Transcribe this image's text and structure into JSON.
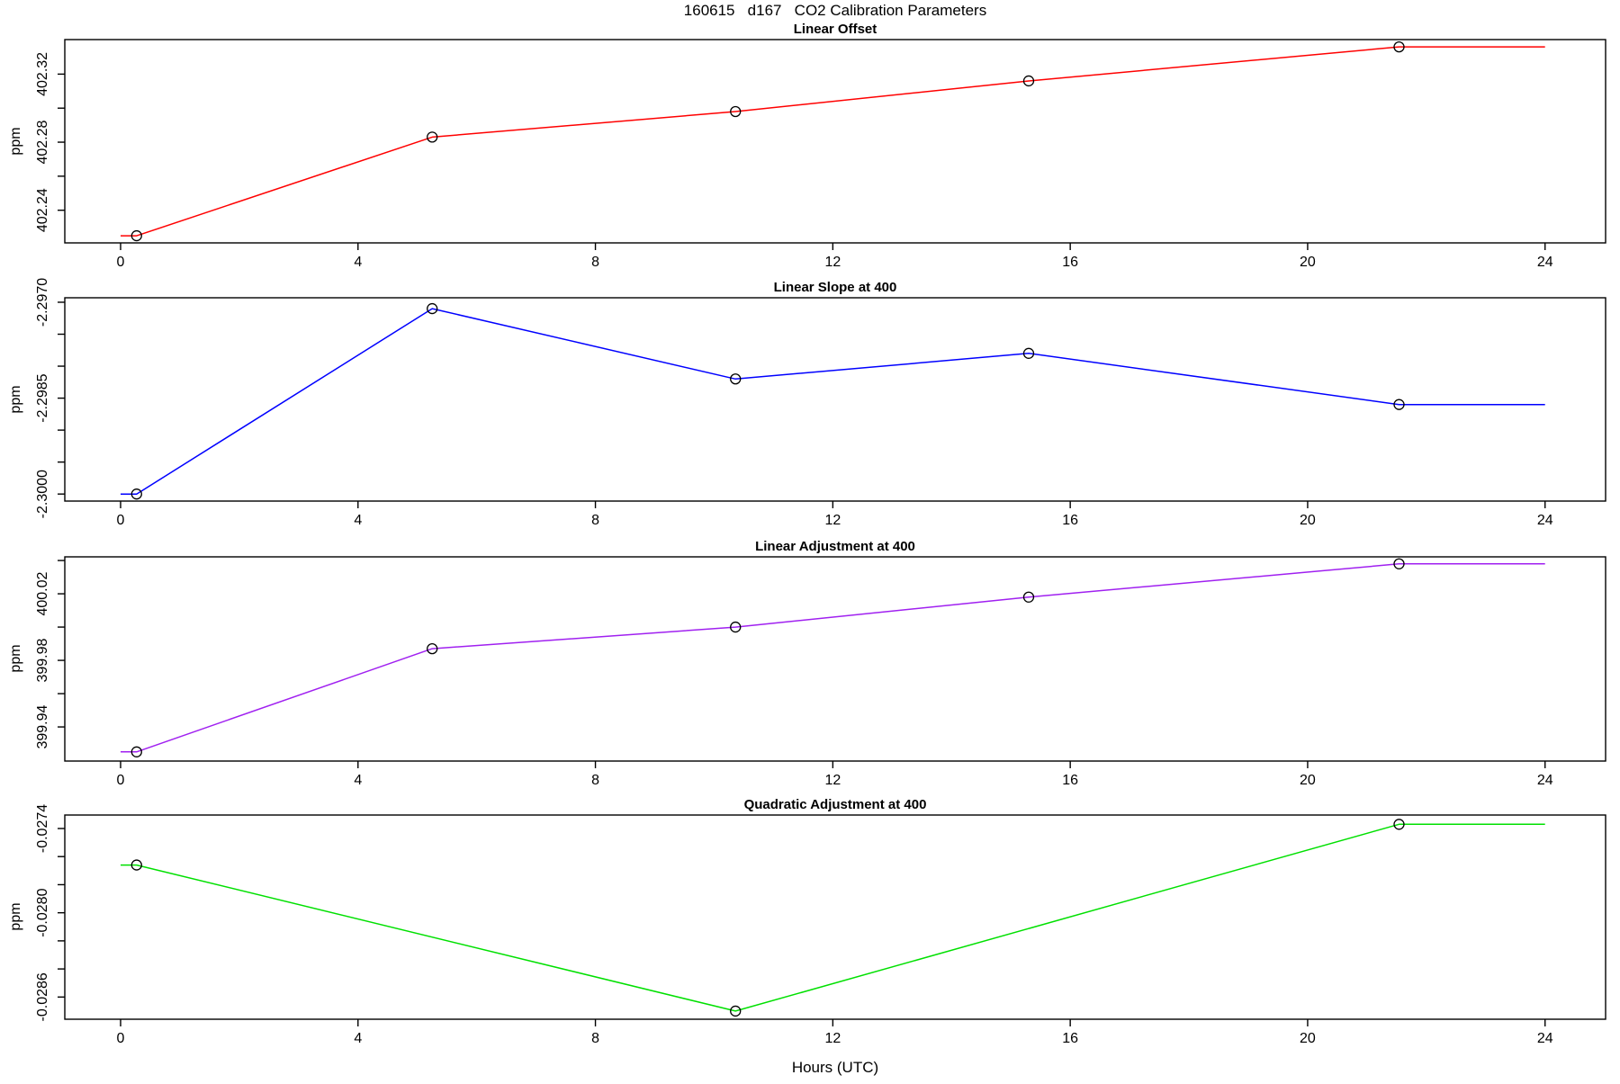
{
  "page": {
    "title": "160615   d167   CO2 Calibration Parameters"
  },
  "axes": {
    "xlabel": "Hours (UTC)",
    "xlim": [
      -0.94,
      25.02
    ],
    "x_ticks": [
      0,
      4,
      8,
      12,
      16,
      20,
      24
    ],
    "x_tick_labels": [
      "0",
      "4",
      "8",
      "12",
      "16",
      "20",
      "24"
    ],
    "frame_color": "#000000",
    "grid": false,
    "legend": "none"
  },
  "chart_data": [
    {
      "type": "line",
      "title": "Linear Offset",
      "ylabel": "ppm",
      "line_color": "#ff0000",
      "marker": "open-circle",
      "marker_color": "#000000",
      "x": [
        0.27,
        5.25,
        10.36,
        15.3,
        21.54
      ],
      "y": [
        402.225,
        402.283,
        402.298,
        402.316,
        402.336
      ],
      "ylim": [
        402.2208,
        402.3403
      ],
      "y_ticks": [
        402.24,
        402.26,
        402.28,
        402.3,
        402.32
      ],
      "y_tick_labels": [
        "402.24",
        "",
        "402.28",
        "",
        "402.32"
      ],
      "extend_flat_to": [
        0,
        24
      ]
    },
    {
      "type": "line",
      "title": "Linear Slope at 400",
      "ylabel": "ppm",
      "line_color": "#0000ff",
      "marker": "open-circle",
      "marker_color": "#000000",
      "x": [
        0.27,
        5.25,
        10.36,
        15.3,
        21.54
      ],
      "y": [
        -2.3,
        -2.2971,
        -2.2982,
        -2.2978,
        -2.2986
      ],
      "ylim": [
        -2.30011,
        -2.29693
      ],
      "y_ticks": [
        -2.297,
        -2.2975,
        -2.298,
        -2.2985,
        -2.299,
        -2.2995,
        -2.3
      ],
      "y_tick_labels": [
        "-2.2970",
        "",
        "",
        "-2.2985",
        "",
        "",
        "-2.3000"
      ],
      "extend_flat_to": [
        0,
        24
      ]
    },
    {
      "type": "line",
      "title": "Linear Adjustment at 400",
      "ylabel": "ppm",
      "line_color": "#a020f0",
      "marker": "open-circle",
      "marker_color": "#000000",
      "x": [
        0.27,
        5.25,
        10.36,
        15.3,
        21.54
      ],
      "y": [
        399.925,
        399.987,
        400.0,
        400.018,
        400.038
      ],
      "ylim": [
        399.9195,
        400.0422
      ],
      "y_ticks": [
        399.94,
        399.96,
        399.98,
        400.0,
        400.02,
        400.04
      ],
      "y_tick_labels": [
        "399.94",
        "",
        "399.98",
        "",
        "400.02",
        ""
      ],
      "extend_flat_to": [
        0,
        24
      ]
    },
    {
      "type": "line",
      "title": "Quadratic Adjustment at 400",
      "ylabel": "ppm",
      "line_color": "#00e000",
      "marker": "open-circle",
      "marker_color": "#000000",
      "x": [
        0.27,
        10.36,
        21.54
      ],
      "y": [
        -0.02766,
        -0.0287,
        -0.02737
      ],
      "ylim": [
        -0.028758,
        -0.027304
      ],
      "y_ticks": [
        -0.0274,
        -0.0276,
        -0.0278,
        -0.028,
        -0.0282,
        -0.0284,
        -0.0286
      ],
      "y_tick_labels": [
        "-0.0274",
        "",
        "",
        "-0.0280",
        "",
        "",
        "-0.0286"
      ],
      "extend_flat_to": [
        0,
        24
      ]
    }
  ]
}
